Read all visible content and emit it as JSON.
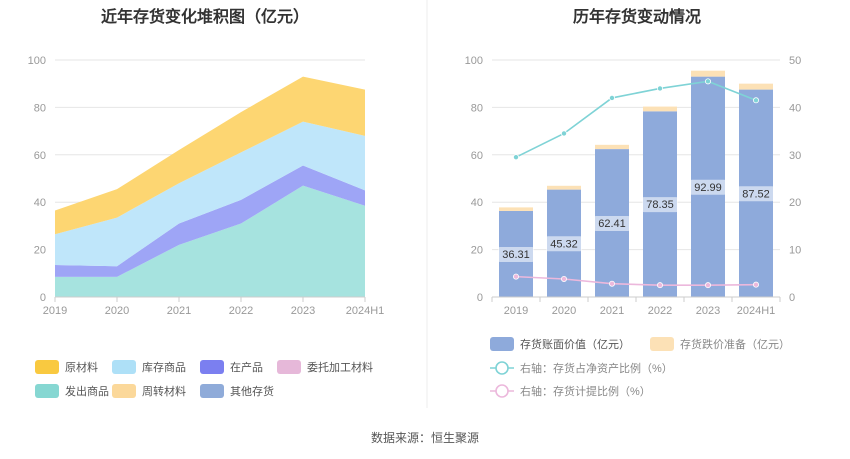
{
  "chart_data": [
    {
      "type": "area",
      "title": "近年存货变化堆积图（亿元）",
      "categories": [
        "2019",
        "2020",
        "2021",
        "2022",
        "2023",
        "2024H1"
      ],
      "ylim": [
        0,
        100
      ],
      "yticks": [
        "0",
        "20",
        "40",
        "60",
        "80",
        "100"
      ],
      "stacked": true,
      "series": [
        {
          "name": "发出商品",
          "color": "#a6e3df",
          "values": [
            8.5,
            8.5,
            22,
            31,
            47,
            38.5
          ]
        },
        {
          "name": "在产品",
          "color": "#9ea5f6",
          "values": [
            5,
            4.5,
            9,
            10,
            8.5,
            6.5
          ]
        },
        {
          "name": "委托加工材料",
          "color": "#e6b8d9",
          "values": [
            0,
            0,
            0,
            0,
            0,
            0
          ]
        },
        {
          "name": "库存商品",
          "color": "#bfe6fa",
          "values": [
            13,
            20.5,
            17,
            20,
            18.5,
            23
          ]
        },
        {
          "name": "周转材料",
          "color": "#fbd89a",
          "values": [
            0,
            0,
            0,
            0,
            0,
            0
          ]
        },
        {
          "name": "其他存货",
          "color": "#8fabd9",
          "values": [
            0,
            0,
            0,
            0,
            0,
            0
          ]
        },
        {
          "name": "原材料",
          "color": "#fdd672",
          "values": [
            10,
            12,
            14,
            17,
            19,
            19.5
          ]
        }
      ],
      "legend": [
        {
          "name": "原材料",
          "color": "#f9c940"
        },
        {
          "name": "库存商品",
          "color": "#aee0f7"
        },
        {
          "name": "在产品",
          "color": "#7b7ff0"
        },
        {
          "name": "委托加工材料",
          "color": "#e6b8d9"
        },
        {
          "name": "发出商品",
          "color": "#86d7d2"
        },
        {
          "name": "周转材料",
          "color": "#fbd89a"
        },
        {
          "name": "其他存货",
          "color": "#8fabd9"
        }
      ],
      "legend_position": "bottom",
      "grid": true
    },
    {
      "type": "bar",
      "title": "历年存货变动情况",
      "categories": [
        "2019",
        "2020",
        "2021",
        "2022",
        "2023",
        "2024H1"
      ],
      "ylim": [
        0,
        100
      ],
      "y2lim": [
        0,
        50
      ],
      "yticks": [
        "0",
        "20",
        "40",
        "60",
        "80",
        "100"
      ],
      "y2ticks": [
        "0",
        "10",
        "20",
        "30",
        "40",
        "50"
      ],
      "stacked": true,
      "series": [
        {
          "name": "存货账面价值（亿元）",
          "color": "#8eaadb",
          "axis": "left",
          "values": [
            36.31,
            45.32,
            62.41,
            78.35,
            92.99,
            87.52
          ],
          "labels": [
            "36.31",
            "45.32",
            "62.41",
            "78.35",
            "92.99",
            "87.52"
          ]
        },
        {
          "name": "存货跌价准备（亿元）",
          "color": "#fce1b6",
          "axis": "left",
          "values": [
            1.5,
            1.6,
            1.8,
            2.0,
            2.5,
            2.5
          ]
        },
        {
          "name": "右轴：存货占净资产比例（%）",
          "color": "#7fd3d6",
          "axis": "right",
          "values": [
            29.5,
            34.5,
            42.0,
            44.0,
            45.5,
            41.5
          ]
        },
        {
          "name": "右轴：存货计提比例（%）",
          "color": "#ecb8dc",
          "axis": "right",
          "values": [
            4.3,
            3.8,
            2.8,
            2.5,
            2.5,
            2.6
          ]
        }
      ],
      "legend_position": "bottom",
      "grid": true
    }
  ],
  "source": "数据来源：恒生聚源"
}
